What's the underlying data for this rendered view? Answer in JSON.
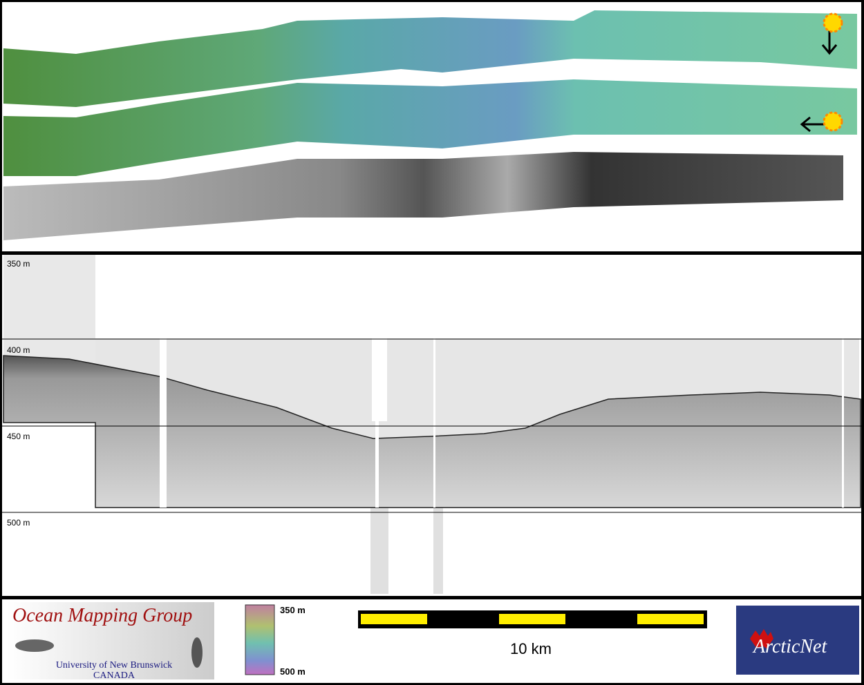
{
  "profile": {
    "depth_labels": [
      "350 m",
      "400 m",
      "450 m",
      "500 m"
    ]
  },
  "footer": {
    "logo": {
      "title": "Ocean Mapping Group",
      "university": "University of New Brunswick",
      "country": "CANADA"
    },
    "colorbar": {
      "top_label": "350 m",
      "bottom_label": "500 m"
    },
    "scale_bar": {
      "label": "10 km"
    },
    "partner_logo": {
      "label": "ArcticNet"
    }
  }
}
